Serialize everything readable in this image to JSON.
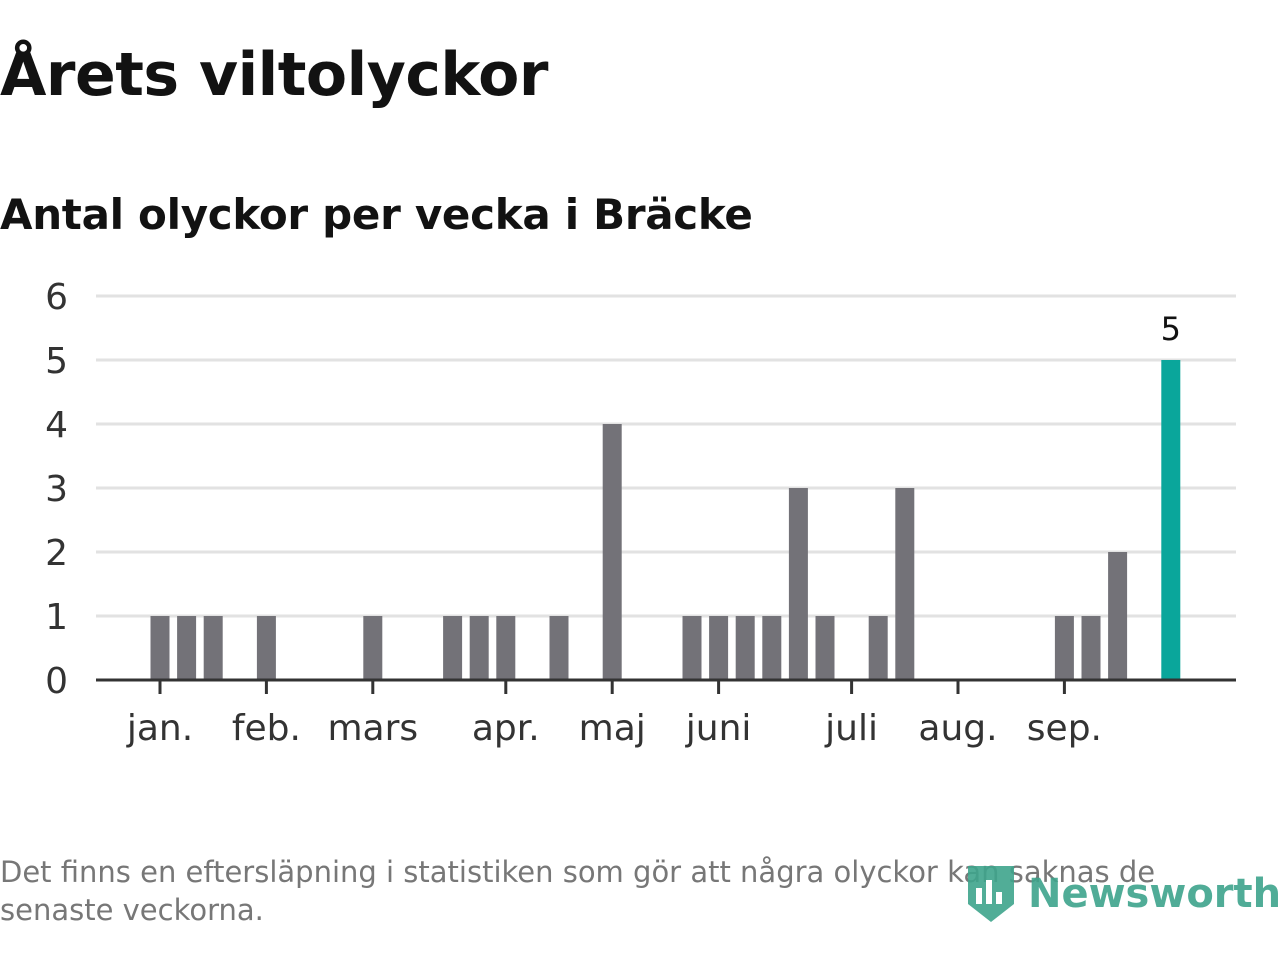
{
  "header": {
    "title": "Årets viltolyckor",
    "subtitle": "Antal olyckor per vecka i Bräcke"
  },
  "footer": {
    "note": "Det finns en eftersläpning i statistiken som gör att några olyckor kan saknas de senaste veckorna.",
    "brand": "Newsworthy"
  },
  "colors": {
    "bar": "#737278",
    "highlight": "#0aa69b",
    "grid": "#e2e2e2",
    "axis": "#333333",
    "brand": "#3ea48c"
  },
  "chart_data": {
    "type": "bar",
    "ylim": [
      0,
      6
    ],
    "yticks": [
      0,
      1,
      2,
      3,
      4,
      5,
      6
    ],
    "grid": true,
    "months": [
      {
        "label": "jan.",
        "week": 1
      },
      {
        "label": "feb.",
        "week": 5
      },
      {
        "label": "mars",
        "week": 9
      },
      {
        "label": "apr.",
        "week": 14
      },
      {
        "label": "maj",
        "week": 18
      },
      {
        "label": "juni",
        "week": 22
      },
      {
        "label": "juli",
        "week": 27
      },
      {
        "label": "aug.",
        "week": 31
      },
      {
        "label": "sep.",
        "week": 35
      }
    ],
    "weeks": [
      1,
      2,
      3,
      4,
      5,
      6,
      7,
      8,
      9,
      10,
      11,
      12,
      13,
      14,
      15,
      16,
      17,
      18,
      19,
      20,
      21,
      22,
      23,
      24,
      25,
      26,
      27,
      28,
      29,
      30,
      31,
      32,
      33,
      34,
      35,
      36,
      37,
      38,
      39
    ],
    "values": [
      1,
      1,
      1,
      0,
      1,
      0,
      0,
      0,
      1,
      0,
      0,
      1,
      1,
      1,
      0,
      1,
      0,
      4,
      0,
      0,
      1,
      1,
      1,
      1,
      3,
      1,
      0,
      1,
      3,
      0,
      0,
      0,
      0,
      0,
      1,
      1,
      2,
      0,
      5
    ],
    "highlight_week": 39,
    "highlight_label": "5"
  }
}
